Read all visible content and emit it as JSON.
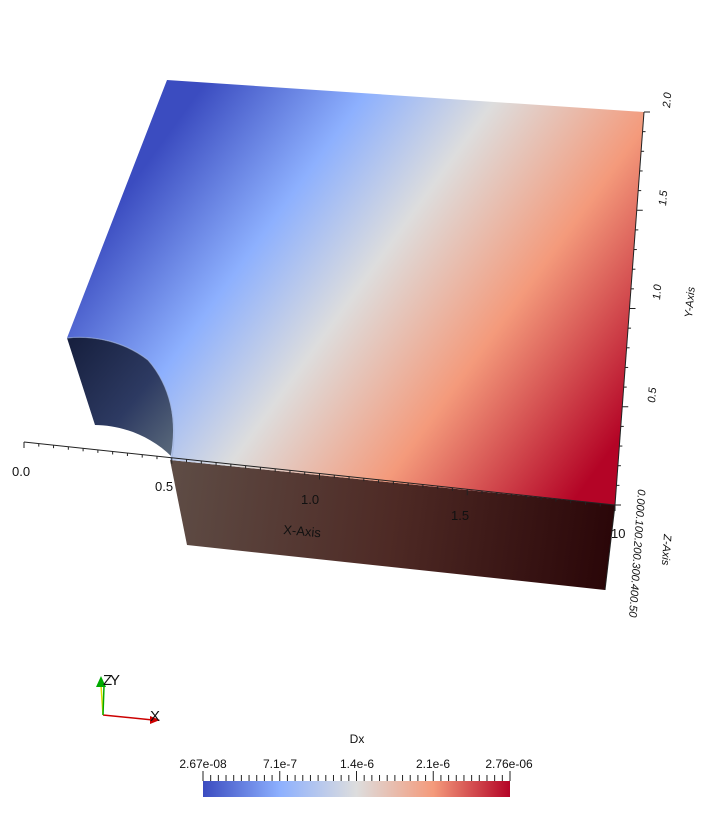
{
  "chart_data": {
    "type": "heatmap",
    "field": "Dx",
    "colorbar": {
      "title": "Dx",
      "range": [
        2.67e-08,
        2.76e-06
      ],
      "tick_labels": [
        "2.67e-08",
        "7.1e-7",
        "1.4e-6",
        "2.1e-6",
        "2.76e-06"
      ],
      "colors": [
        "#3b4cc0",
        "#8db0fe",
        "#dddddd",
        "#f49a7b",
        "#b40426"
      ]
    },
    "x_axis": {
      "label": "X-Axis",
      "range": [
        0.0,
        2.0
      ],
      "ticks": [
        0.0,
        0.5,
        1.0,
        1.5
      ],
      "tick_labels": [
        "0.0",
        "0.5",
        "1.0",
        "1.5"
      ]
    },
    "y_axis": {
      "label": "Y-Axis",
      "range": [
        0.0,
        2.0
      ],
      "ticks": [
        0.5,
        1.0,
        1.5,
        2.0
      ],
      "tick_labels": [
        "0.5",
        "1.0",
        "1.5",
        "2.0"
      ]
    },
    "z_axis": {
      "label": "Z-Axis",
      "tick_labels": [
        "0.00",
        "0.10",
        "0.20",
        "0.30",
        "0.40",
        "0.50"
      ],
      "tick_text": "0.000.100.200.300.400.50",
      "end_label": "10"
    },
    "orientation_widget": {
      "x_label": "X",
      "y_label": "Y",
      "z_label": "Z",
      "x_color": "#cc0000",
      "y_color": "#00aa00",
      "z_color": "#dddd00"
    },
    "grid": false,
    "legend_position": "bottom-center"
  }
}
